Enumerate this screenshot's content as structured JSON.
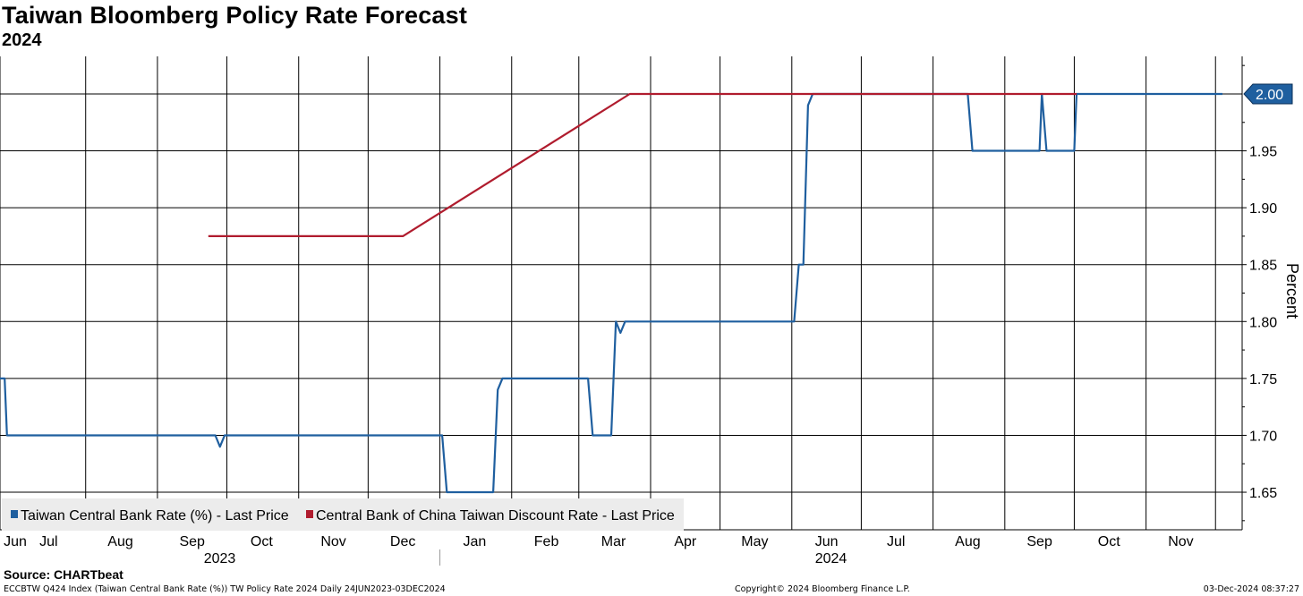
{
  "title": "Taiwan Bloomberg Policy Rate Forecast",
  "subtitle": "2024",
  "source": "Source: CHARTbeat",
  "footer": {
    "left": "ECCBTW Q424 Index (Taiwan Central Bank Rate (%)) TW Policy Rate 2024  Daily 24JUN2023-03DEC2024",
    "center": "Copyright© 2024 Bloomberg Finance L.P.",
    "right": "03-Dec-2024 08:37:27"
  },
  "chart_data": {
    "type": "line",
    "ylabel": "Percent",
    "y_axis_side": "right",
    "ylim": [
      1.617,
      2.033
    ],
    "y_ticks": [
      1.65,
      1.7,
      1.75,
      1.8,
      1.85,
      1.9,
      1.95
    ],
    "x_start": "2023-06-24",
    "x_end": "2024-12-03",
    "month_ticks": [
      {
        "label": "Jun",
        "date": "2023-06-24"
      },
      {
        "label": "Jul",
        "date": "2023-07-15"
      },
      {
        "label": "Aug",
        "date": "2023-08-15"
      },
      {
        "label": "Sep",
        "date": "2023-09-15"
      },
      {
        "label": "Oct",
        "date": "2023-10-15"
      },
      {
        "label": "Nov",
        "date": "2023-11-15"
      },
      {
        "label": "Dec",
        "date": "2023-12-15"
      },
      {
        "label": "Jan",
        "date": "2024-01-15"
      },
      {
        "label": "Feb",
        "date": "2024-02-15"
      },
      {
        "label": "Mar",
        "date": "2024-03-15"
      },
      {
        "label": "Apr",
        "date": "2024-04-15"
      },
      {
        "label": "May",
        "date": "2024-05-15"
      },
      {
        "label": "Jun",
        "date": "2024-06-15"
      },
      {
        "label": "Jul",
        "date": "2024-07-15"
      },
      {
        "label": "Aug",
        "date": "2024-08-15"
      },
      {
        "label": "Sep",
        "date": "2024-09-15"
      },
      {
        "label": "Oct",
        "date": "2024-10-15"
      },
      {
        "label": "Nov",
        "date": "2024-11-15"
      }
    ],
    "vertical_gridlines": [
      "2023-06-24",
      "2023-07-31",
      "2023-08-31",
      "2023-09-30",
      "2023-10-31",
      "2023-11-30",
      "2023-12-31",
      "2024-01-31",
      "2024-02-29",
      "2024-03-31",
      "2024-04-30",
      "2024-05-31",
      "2024-06-30",
      "2024-07-31",
      "2024-08-31",
      "2024-09-30",
      "2024-10-31",
      "2024-11-30"
    ],
    "year_labels": [
      {
        "label": "2023",
        "date": "2023-09-30"
      },
      {
        "label": "2024",
        "date": "2024-06-20"
      }
    ],
    "year_divider": "2023-12-31",
    "legend": "bottom-left",
    "last_value_label": "2.00",
    "grid": true,
    "series": [
      {
        "name": "Taiwan Central Bank Rate (%) - Last Price",
        "color": "#1f5f9f",
        "points": [
          [
            "2023-06-24",
            1.75
          ],
          [
            "2023-06-26",
            1.75
          ],
          [
            "2023-06-27",
            1.7
          ],
          [
            "2023-09-25",
            1.7
          ],
          [
            "2023-09-27",
            1.69
          ],
          [
            "2023-09-29",
            1.7
          ],
          [
            "2024-01-01",
            1.7
          ],
          [
            "2024-01-03",
            1.65
          ],
          [
            "2024-01-23",
            1.65
          ],
          [
            "2024-01-25",
            1.74
          ],
          [
            "2024-01-27",
            1.75
          ],
          [
            "2024-03-04",
            1.75
          ],
          [
            "2024-03-06",
            1.7
          ],
          [
            "2024-03-14",
            1.7
          ],
          [
            "2024-03-16",
            1.8
          ],
          [
            "2024-03-18",
            1.79
          ],
          [
            "2024-03-20",
            1.8
          ],
          [
            "2024-06-01",
            1.8
          ],
          [
            "2024-06-03",
            1.85
          ],
          [
            "2024-06-05",
            1.85
          ],
          [
            "2024-06-07",
            1.99
          ],
          [
            "2024-06-09",
            2.0
          ],
          [
            "2024-08-15",
            2.0
          ],
          [
            "2024-08-17",
            1.95
          ],
          [
            "2024-09-15",
            1.95
          ],
          [
            "2024-09-16",
            2.0
          ],
          [
            "2024-09-18",
            1.95
          ],
          [
            "2024-09-30",
            1.95
          ],
          [
            "2024-10-01",
            2.0
          ],
          [
            "2024-12-03",
            2.0
          ]
        ]
      },
      {
        "name": "Central Bank of China Taiwan Discount Rate - Last Price",
        "color": "#b01c2e",
        "points": [
          [
            "2023-09-22",
            1.875
          ],
          [
            "2023-12-15",
            1.875
          ],
          [
            "2024-03-22",
            2.0
          ],
          [
            "2024-10-01",
            2.0
          ]
        ]
      }
    ]
  }
}
